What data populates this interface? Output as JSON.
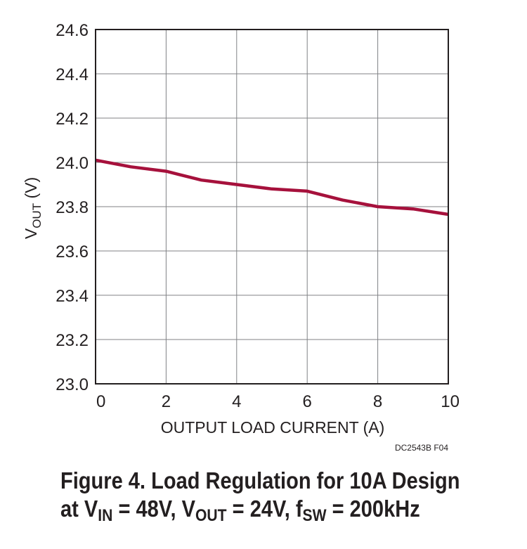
{
  "chart_data": {
    "type": "line",
    "title": "",
    "xlabel": "OUTPUT LOAD CURRENT (A)",
    "ylabel": {
      "main": "V",
      "sub": "OUT",
      "unit": " (V)"
    },
    "xlim": [
      0,
      10
    ],
    "ylim": [
      23.0,
      24.6
    ],
    "x_ticks": [
      0,
      2,
      4,
      6,
      8,
      10
    ],
    "x_tick_labels": [
      "0",
      "2",
      "4",
      "6",
      "8",
      "10"
    ],
    "y_ticks": [
      23.0,
      23.2,
      23.4,
      23.6,
      23.8,
      24.0,
      24.2,
      24.4,
      24.6
    ],
    "y_tick_labels": [
      "23.0",
      "23.2",
      "23.4",
      "23.6",
      "23.8",
      "24.0",
      "24.2",
      "24.4",
      "24.6"
    ],
    "grid": true,
    "series": [
      {
        "name": "VOUT",
        "color": "#a6113c",
        "x": [
          0,
          1,
          2,
          3,
          4,
          5,
          6,
          7,
          8,
          9,
          10
        ],
        "values": [
          24.01,
          23.98,
          23.96,
          23.92,
          23.9,
          23.88,
          23.87,
          23.83,
          23.8,
          23.79,
          23.765
        ]
      }
    ],
    "figure_id": "DC2543B F04"
  },
  "caption": {
    "line1": "Figure 4. Load Regulation for 10A Design",
    "line2_at": "at V",
    "line2_vin_sub": "IN",
    "line2_vin_val": " = 48V, V",
    "line2_vout_sub": "OUT",
    "line2_vout_val": " = 24V, f",
    "line2_fsw_sub": "SW",
    "line2_fsw_val": " = 200kHz"
  },
  "colors": {
    "line": "#a6113c",
    "grid": "#808285",
    "text": "#231f20"
  }
}
